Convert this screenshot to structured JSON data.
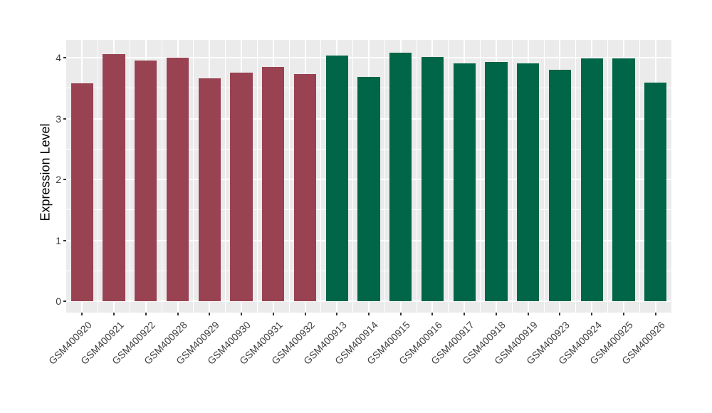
{
  "figure": {
    "background": "#FFFFFF",
    "panel_background": "#EBEBEB",
    "gridline_color": "#FFFFFF",
    "tick_mark_color": "#333333",
    "axis_text_color": "#404040",
    "axis_title_color": "#000000"
  },
  "chart_data": {
    "type": "bar",
    "ylabel": "Expression Level",
    "categories": [
      "GSM400920",
      "GSM400921",
      "GSM400922",
      "GSM400928",
      "GSM400929",
      "GSM400930",
      "GSM400931",
      "GSM400932",
      "GSM400913",
      "GSM400914",
      "GSM400915",
      "GSM400916",
      "GSM400917",
      "GSM400918",
      "GSM400919",
      "GSM400923",
      "GSM400924",
      "GSM400925",
      "GSM400926"
    ],
    "values": [
      3.58,
      4.06,
      3.95,
      4.0,
      3.66,
      3.76,
      3.85,
      3.73,
      4.04,
      3.68,
      4.08,
      4.01,
      3.91,
      3.93,
      3.91,
      3.8,
      3.99,
      3.99,
      3.59
    ],
    "bar_colors": [
      "#994252",
      "#994252",
      "#994252",
      "#994252",
      "#994252",
      "#994252",
      "#994252",
      "#994252",
      "#006647",
      "#006647",
      "#006647",
      "#006647",
      "#006647",
      "#006647",
      "#006647",
      "#006647",
      "#006647",
      "#006647",
      "#006647"
    ],
    "group_colors": {
      "left_group": "#994252",
      "right_group": "#006647"
    },
    "ytick_labels": [
      "0",
      "1",
      "2",
      "3",
      "4"
    ],
    "ytick_values": [
      0,
      1,
      2,
      3,
      4
    ],
    "minor_grid_step": 0.5,
    "ylim": [
      -0.19,
      4.29
    ],
    "grid": true,
    "legend": "none",
    "x_label_angle_deg": 45
  }
}
